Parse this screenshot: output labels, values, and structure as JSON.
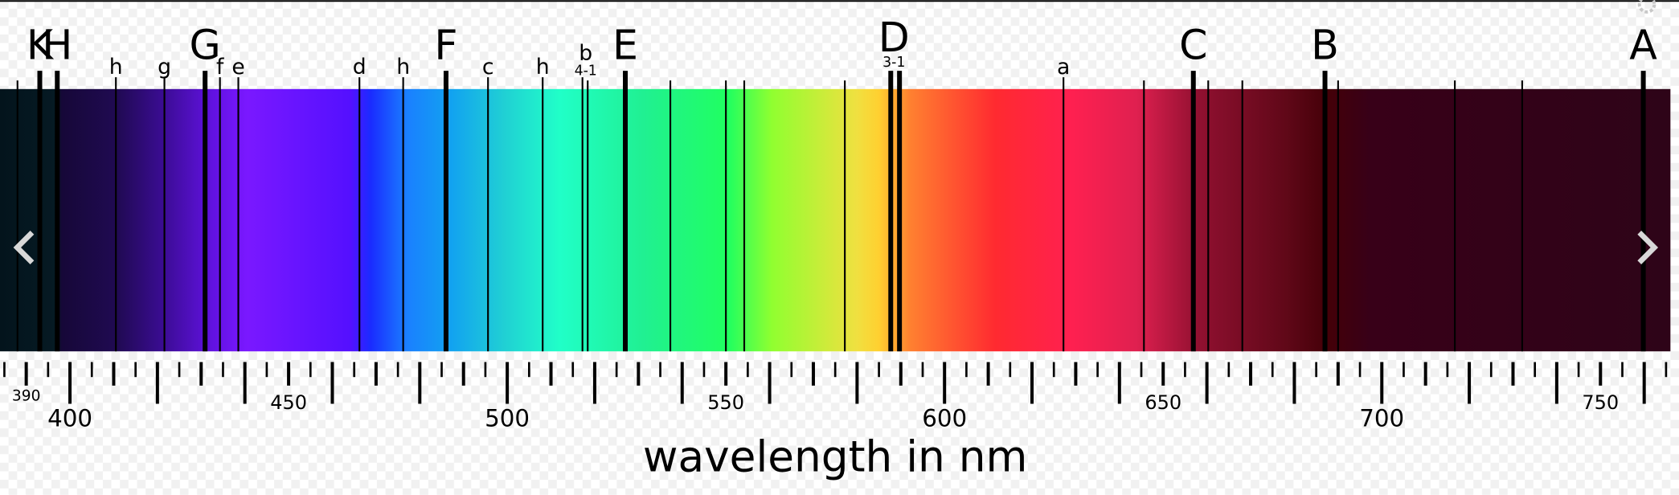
{
  "chart_data": {
    "type": "spectrum",
    "xlabel": "wavelength in nm",
    "xlim": [
      384,
      766
    ],
    "xticks": [
      390,
      400,
      450,
      500,
      550,
      600,
      650,
      700,
      750
    ],
    "minor_xticks": [
      385,
      395,
      405,
      410,
      415,
      420,
      425,
      430,
      435,
      440,
      445,
      455,
      460,
      465,
      470,
      475,
      480,
      485,
      490,
      495,
      505,
      510,
      515,
      520,
      525,
      530,
      535,
      540,
      545,
      555,
      560,
      565,
      570,
      575,
      580,
      585,
      590,
      595,
      605,
      610,
      615,
      620,
      625,
      630,
      635,
      640,
      645,
      655,
      660,
      665,
      670,
      675,
      680,
      685,
      690,
      695,
      705,
      710,
      715,
      720,
      725,
      730,
      735,
      740,
      745,
      755,
      760,
      765
    ],
    "lines": [
      {
        "x": 388.0
      },
      {
        "x": 393.1,
        "label": "K",
        "bold": true
      },
      {
        "x": 397.1,
        "label": "H",
        "bold": true
      },
      {
        "x": 410.5,
        "label": "h"
      },
      {
        "x": 421.6,
        "label": "g"
      },
      {
        "x": 430.9,
        "label": "G",
        "bold": true
      },
      {
        "x": 434.3,
        "label": "f"
      },
      {
        "x": 438.5,
        "label": "e"
      },
      {
        "x": 466.2,
        "label": "d"
      },
      {
        "x": 476.2,
        "label": "h"
      },
      {
        "x": 486.0,
        "label": "F",
        "bold": true
      },
      {
        "x": 495.6,
        "label": "c"
      },
      {
        "x": 508.1,
        "label": "h"
      },
      {
        "x": 517.2,
        "label": "b",
        "sublabel": "4-1"
      },
      {
        "x": 518.4
      },
      {
        "x": 527.0,
        "label": "E",
        "bold": true
      },
      {
        "x": 537.3
      },
      {
        "x": 550.0
      },
      {
        "x": 554.2
      },
      {
        "x": 577.2
      },
      {
        "x": 587.7,
        "label": "D",
        "sublabel": "3-1",
        "bold": true
      },
      {
        "x": 589.7,
        "bold": true
      },
      {
        "x": 627.2,
        "label": "a"
      },
      {
        "x": 645.6
      },
      {
        "x": 656.9,
        "label": "C",
        "bold": true
      },
      {
        "x": 660.3
      },
      {
        "x": 668.1
      },
      {
        "x": 687.0,
        "label": "B",
        "bold": true
      },
      {
        "x": 690.0
      },
      {
        "x": 716.7
      },
      {
        "x": 732.1
      },
      {
        "x": 759.8,
        "label": "A",
        "bold": true
      }
    ]
  }
}
